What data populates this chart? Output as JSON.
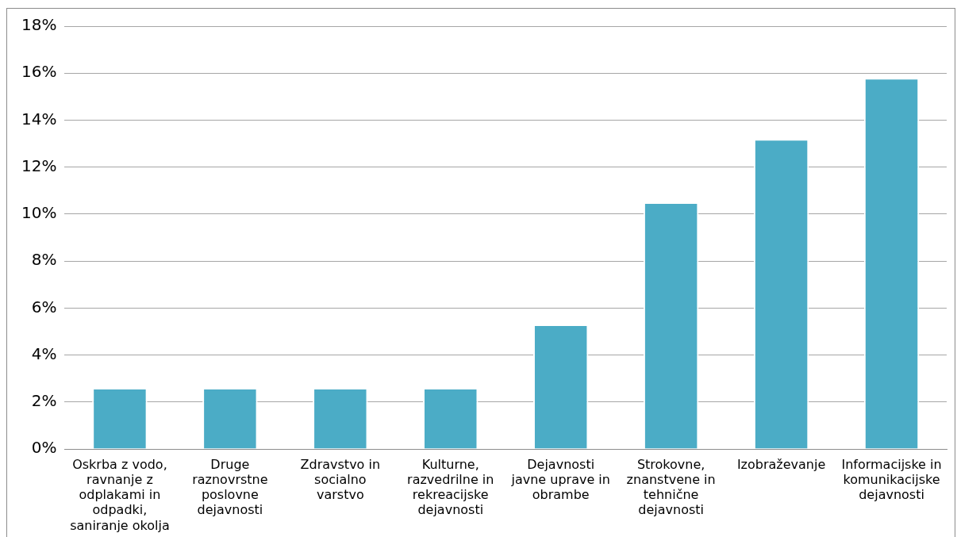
{
  "chart_data": {
    "type": "bar",
    "categories": [
      "Oskrba z vodo, ravnanje z odplakami in odpadki, saniranje okolja",
      "Druge raznovrstne poslovne dejavnosti",
      "Zdravstvo in socialno varstvo",
      "Kulturne, razvedrilne in rekreacijske dejavnosti",
      "Dejavnosti javne uprave in obrambe",
      "Strokovne, znanstvene in tehnične dejavnosti",
      "Izobraževanje",
      "Informacijske in komunikacijske dejavnosti"
    ],
    "values": [
      2.6,
      2.6,
      2.6,
      2.6,
      5.3,
      10.5,
      13.2,
      15.8
    ],
    "color": "#4bacc6",
    "ylim": [
      0,
      18
    ],
    "yticks": [
      {
        "value": 0,
        "label": "0%"
      },
      {
        "value": 2,
        "label": "2%"
      },
      {
        "value": 4,
        "label": "4%"
      },
      {
        "value": 6,
        "label": "6%"
      },
      {
        "value": 8,
        "label": "8%"
      },
      {
        "value": 10,
        "label": "10%"
      },
      {
        "value": 12,
        "label": "12%"
      },
      {
        "value": 14,
        "label": "14%"
      },
      {
        "value": 16,
        "label": "16%"
      },
      {
        "value": 18,
        "label": "18%"
      }
    ],
    "grid": "y",
    "legend": false
  }
}
